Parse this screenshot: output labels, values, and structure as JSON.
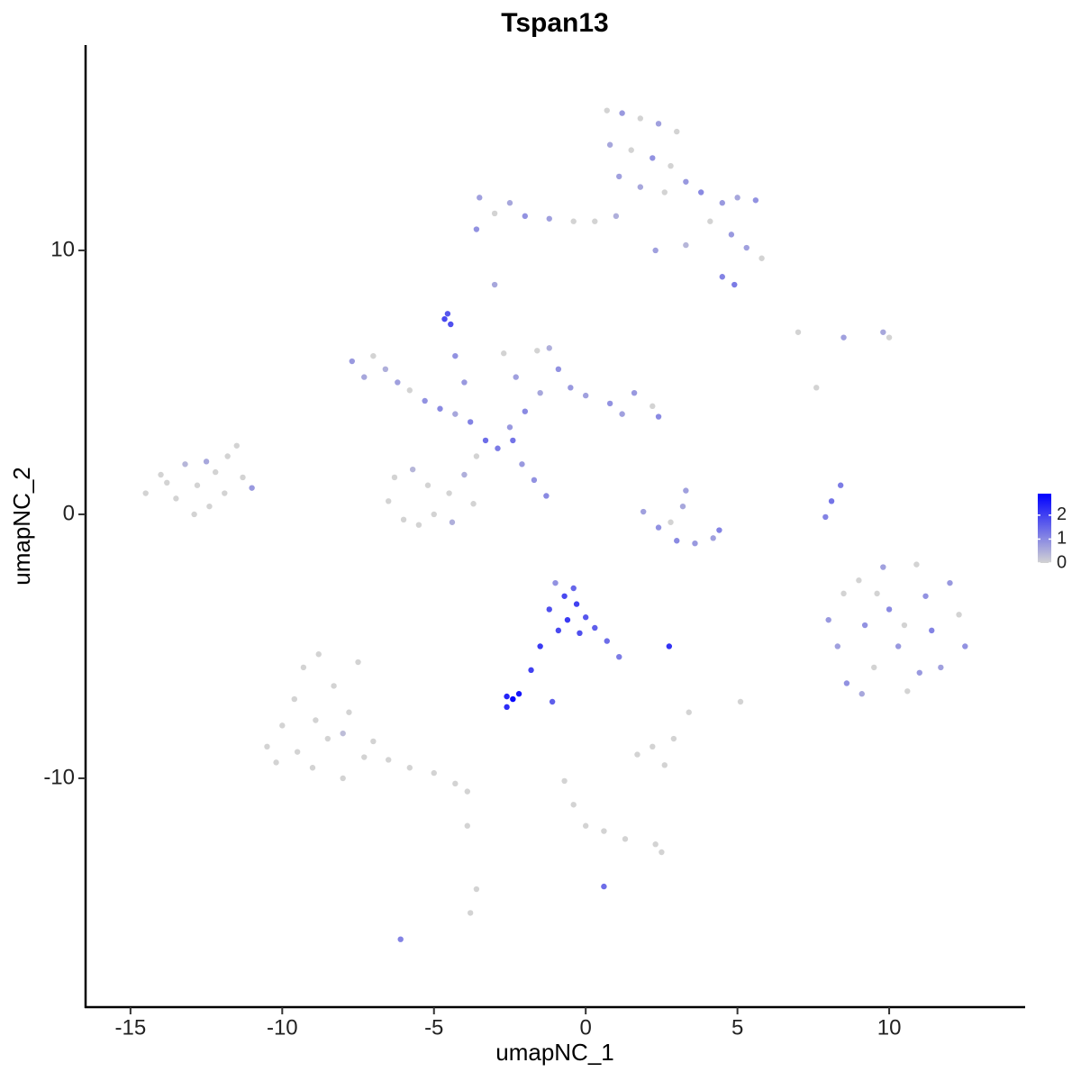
{
  "chart_data": {
    "type": "scatter",
    "title": "Tspan13",
    "x_label": "umapNC_1",
    "y_label": "umapNC_2",
    "xlim": [
      -16.48,
      14.48
    ],
    "ylim": [
      -18.67,
      17.78
    ],
    "xticks": [
      -15,
      -10,
      -5,
      0,
      5,
      10
    ],
    "yticks": [
      -10,
      0,
      10
    ],
    "colorbar": {
      "lim": [
        0,
        2.9
      ],
      "ticks": [
        0,
        1,
        2
      ],
      "low": "#d3d3d3",
      "high": "#0000ff"
    },
    "x": [
      -14.5,
      -14,
      -13.5,
      -13.2,
      -12.8,
      -12.4,
      -12.2,
      -11.8,
      -11.5,
      -11.3,
      -11,
      -12.9,
      -13.8,
      -12.5,
      -11.9,
      -10.5,
      -10,
      -9.6,
      -9.3,
      -9,
      -8.8,
      -8.5,
      -8.3,
      -8,
      -7.8,
      -7.5,
      -7.3,
      -7,
      -9.5,
      -8.9,
      -8,
      -6.5,
      -5.8,
      -5,
      -4.3,
      -3.9,
      -10.2,
      -7.7,
      -7.3,
      -7,
      -6.6,
      -6.2,
      -5.8,
      -5.3,
      -4.8,
      -4.3,
      -3.8,
      -3.3,
      -2.9,
      -3.6,
      -4,
      -4.5,
      -5,
      -5.5,
      -6,
      -6.5,
      -6.3,
      -5.7,
      -5.2,
      -4.4,
      -3.7,
      -4.65,
      -4.55,
      -4.45,
      -4.3,
      -4,
      -2.7,
      -2.3,
      -1.6,
      -1.2,
      -0.9,
      -0.5,
      -1.5,
      -2,
      -2.5,
      0,
      0.8,
      1.6,
      2.2,
      2.4,
      1.2,
      -2.1,
      -1.7,
      -1.3,
      -2.4,
      0.7,
      1.2,
      1.8,
      2.4,
      3,
      0.8,
      1.5,
      2.2,
      2.8,
      1.1,
      1.8,
      2.6,
      3.3,
      -3.5,
      -3,
      -2.5,
      -2,
      -1.2,
      -0.4,
      0.3,
      1,
      3.8,
      4.5,
      5,
      5.6,
      4.1,
      4.8,
      5.3,
      5.8,
      4.5,
      4.9,
      3.3,
      2.3,
      -3.6,
      -3,
      -1.2,
      -1,
      -0.7,
      -0.3,
      0,
      -0.6,
      -0.2,
      0.3,
      0.7,
      1.1,
      -0.9,
      -0.4,
      -1.5,
      -1.8,
      -2.6,
      -2.4,
      -2.2,
      -2.6,
      -1.1,
      2.75,
      1.9,
      2.4,
      3,
      3.6,
      4.2,
      4.4,
      3.2,
      3.3,
      2.8,
      7.9,
      8.1,
      8.4,
      8,
      8.3,
      8.6,
      8.5,
      9,
      9.2,
      9.5,
      9.8,
      10,
      10.3,
      10.6,
      10.9,
      11.2,
      11.4,
      11.7,
      12,
      12.3,
      12.5,
      9.1,
      10.5,
      11,
      9.6,
      1.7,
      2.2,
      2.6,
      2.9,
      -0.7,
      -0.4,
      0,
      0.6,
      1.3,
      2.3,
      2.5,
      -3.9,
      -3.6,
      -3.8,
      -6.1,
      0.6,
      5.1,
      3.4,
      7,
      9.8,
      10,
      7.6,
      8.5
    ],
    "y": [
      0.8,
      1.5,
      0.6,
      1.9,
      1.1,
      0.3,
      1.6,
      2.2,
      2.6,
      1.4,
      1.0,
      0,
      1.2,
      2.0,
      0.8,
      -8.8,
      -8,
      -7,
      -5.8,
      -9.6,
      -5.3,
      -8.5,
      -6.5,
      -10,
      -7.5,
      -5.6,
      -9.2,
      -8.6,
      -9,
      -7.8,
      -8.3,
      -9.3,
      -9.6,
      -9.8,
      -10.2,
      -10.5,
      -9.4,
      5.8,
      5.2,
      6,
      5.5,
      5,
      4.7,
      4.3,
      4,
      3.8,
      3.5,
      2.8,
      2.5,
      2.2,
      1.5,
      0.8,
      0,
      -0.4,
      -0.2,
      0.5,
      1.4,
      1.7,
      1.1,
      -0.3,
      0.4,
      7.4,
      7.6,
      7.2,
      6,
      5,
      6.1,
      5.2,
      6.2,
      6.3,
      5.5,
      4.8,
      4.6,
      3.9,
      3.3,
      4.5,
      4.2,
      4.6,
      4.1,
      3.7,
      3.8,
      1.9,
      1.3,
      0.7,
      2.8,
      15.3,
      15.2,
      15,
      14.8,
      14.5,
      14,
      13.8,
      13.5,
      13.2,
      12.8,
      12.4,
      12.2,
      12.6,
      12,
      11.4,
      11.8,
      11.3,
      11.2,
      11.1,
      11.1,
      11.3,
      12.2,
      11.8,
      12,
      11.9,
      11.1,
      10.6,
      10.1,
      9.7,
      9,
      8.7,
      10.2,
      10,
      10.8,
      8.7,
      -3.6,
      -2.6,
      -3.1,
      -3.4,
      -3.9,
      -4,
      -4.5,
      -4.3,
      -4.8,
      -5.4,
      -4.4,
      -2.8,
      -5,
      -5.9,
      -6.9,
      -7,
      -6.8,
      -7.3,
      -7.1,
      -5,
      0.1,
      -0.5,
      -1,
      -1.1,
      -0.9,
      -0.6,
      0.3,
      0.9,
      -0.3,
      -0.1,
      0.5,
      1.1,
      -4,
      -5,
      -6.4,
      -3,
      -2.5,
      -4.2,
      -5.8,
      -2,
      -3.6,
      -5,
      -6.7,
      -1.9,
      -3.1,
      -4.4,
      -5.8,
      -2.6,
      -3.8,
      -5,
      -6.8,
      -4.2,
      -6,
      -3,
      -9.1,
      -8.8,
      -9.5,
      -8.5,
      -10.1,
      -11,
      -11.8,
      -12,
      -12.3,
      -12.5,
      -12.8,
      -11.8,
      -14.2,
      -15.1,
      -16.1,
      -14.1,
      -7.1,
      -7.5,
      6.9,
      6.9,
      6.7,
      4.8,
      6.7
    ],
    "values": [
      0,
      0,
      0,
      0.4,
      0,
      0,
      0,
      0,
      0,
      0,
      0.8,
      0,
      0,
      0.6,
      0,
      0,
      0,
      0,
      0,
      0,
      0,
      0,
      0,
      0,
      0,
      0,
      0,
      0,
      0,
      0,
      0.3,
      0,
      0,
      0,
      0,
      0,
      0,
      0.8,
      0.6,
      0,
      0.5,
      0.7,
      0,
      0.9,
      1.0,
      0.6,
      1.1,
      1.4,
      1.2,
      0,
      0.5,
      0,
      0,
      0,
      0,
      0,
      0,
      0.4,
      0,
      0.5,
      0,
      1.9,
      1.7,
      1.8,
      0.9,
      0.8,
      0,
      0.7,
      0,
      0.5,
      0.9,
      0.8,
      0.6,
      1.0,
      0.8,
      0.7,
      0.9,
      0.8,
      0,
      1.0,
      0.7,
      0.8,
      0.9,
      1.0,
      1.3,
      0,
      0.8,
      0,
      0.7,
      0,
      0.6,
      0,
      0.9,
      0,
      0.7,
      0.6,
      0,
      0.8,
      0.7,
      0,
      0.6,
      0.9,
      0.7,
      0,
      0,
      0.5,
      1.0,
      0.8,
      0.6,
      0.9,
      0,
      0.8,
      0.7,
      0,
      1.1,
      1.2,
      0.4,
      0.7,
      0.9,
      0.6,
      1.8,
      0.9,
      1.9,
      2.0,
      1.7,
      2.1,
      1.8,
      1.6,
      1.4,
      1.2,
      1.9,
      1.5,
      2.1,
      2.0,
      2.4,
      2.8,
      2.6,
      2.3,
      1.6,
      2.2,
      0.7,
      0.9,
      1.0,
      0.8,
      0.7,
      1.1,
      0.6,
      0.7,
      0,
      1.1,
      1.3,
      1.2,
      0.8,
      0.7,
      0.9,
      0,
      0,
      0.9,
      0,
      0.7,
      1.0,
      0.8,
      0,
      0,
      0.9,
      1.1,
      0.7,
      0.8,
      0,
      0.9,
      0.6,
      0,
      0.8,
      0,
      0,
      0,
      0,
      0,
      0,
      0,
      0,
      0,
      0,
      0,
      0,
      0,
      0,
      0,
      1.1,
      1.4,
      0,
      0,
      0,
      0.6,
      0,
      0,
      0.7
    ]
  }
}
